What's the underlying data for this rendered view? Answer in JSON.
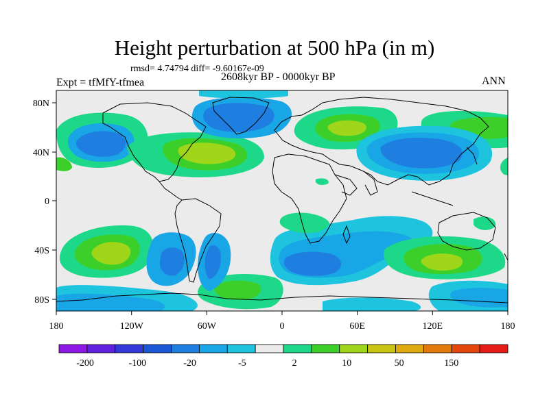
{
  "title": "Height perturbation at 500 hPa (in m)",
  "subtitle_stats": "rmsd= 4.74794 diff= -9.60167e-09",
  "experiment": "Expt = tfMfY-tfmea",
  "period": "2608kyr BP - 0000kyr BP",
  "season": "ANN",
  "map": {
    "lon_range": [
      -180,
      180
    ],
    "lat_range": [
      -90,
      90
    ],
    "lon_ticks": [
      "180",
      "120W",
      "60W",
      "0",
      "60E",
      "120E",
      "180"
    ],
    "lat_ticks": [
      "80N",
      "40N",
      "0",
      "40S",
      "80S"
    ]
  },
  "colorbar": {
    "labels": [
      "-200",
      "-100",
      "-20",
      "-5",
      "2",
      "10",
      "50",
      "150"
    ],
    "colors": [
      "#8f18e6",
      "#6020e0",
      "#3438d8",
      "#1a58d6",
      "#1e7fe0",
      "#18a6e6",
      "#1ec3de",
      "#ebebeb",
      "#1ed889",
      "#3ccf2a",
      "#9fd61a",
      "#c9c312",
      "#e0a90e",
      "#e57a0c",
      "#e4470c",
      "#e41b18"
    ]
  },
  "fields": {
    "neutral": "#ebebeb",
    "land_outline": "#000000"
  }
}
